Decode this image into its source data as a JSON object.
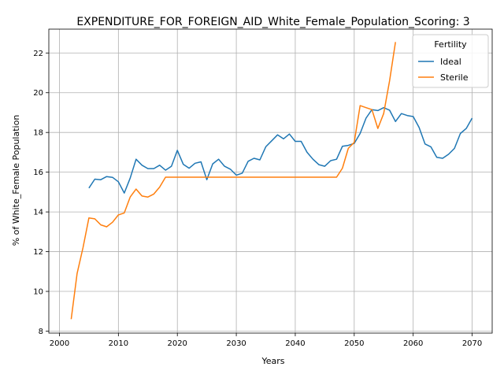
{
  "chart_data": {
    "type": "line",
    "title": "EXPENDITURE_FOR_FOREIGN_AID_White_Female_Population_Scoring: 3",
    "xlabel": "Years",
    "ylabel": "% of White_Female Population",
    "xlim": [
      1998.2,
      2073.4
    ],
    "ylim": [
      7.9,
      23.2
    ],
    "xticks": [
      2000,
      2010,
      2020,
      2030,
      2040,
      2050,
      2060,
      2070
    ],
    "yticks": [
      8,
      10,
      12,
      14,
      16,
      18,
      20,
      22
    ],
    "grid": true,
    "legend": {
      "title": "Fertility",
      "placement": "top-right"
    },
    "series": [
      {
        "name": "Ideal",
        "color": "#1f77b4",
        "x": [
          2005,
          2006,
          2007,
          2008,
          2009,
          2010,
          2011,
          2012,
          2013,
          2014,
          2015,
          2016,
          2017,
          2018,
          2019,
          2020,
          2021,
          2022,
          2023,
          2024,
          2025,
          2026,
          2027,
          2028,
          2029,
          2030,
          2031,
          2032,
          2033,
          2034,
          2035,
          2036,
          2037,
          2038,
          2039,
          2040,
          2041,
          2042,
          2043,
          2044,
          2045,
          2046,
          2047,
          2048,
          2049,
          2050,
          2051,
          2052,
          2053,
          2054,
          2055,
          2056,
          2057,
          2058,
          2059,
          2060,
          2061,
          2062,
          2063,
          2064,
          2065,
          2066,
          2067,
          2068,
          2069,
          2070
        ],
        "y": [
          15.2,
          15.65,
          15.62,
          15.78,
          15.74,
          15.52,
          14.95,
          15.7,
          16.65,
          16.35,
          16.18,
          16.18,
          16.35,
          16.1,
          16.3,
          17.1,
          16.4,
          16.2,
          16.45,
          16.52,
          15.62,
          16.42,
          16.65,
          16.3,
          16.15,
          15.85,
          15.95,
          16.55,
          16.7,
          16.62,
          17.28,
          17.58,
          17.88,
          17.68,
          17.92,
          17.55,
          17.55,
          17.0,
          16.65,
          16.38,
          16.3,
          16.58,
          16.65,
          17.3,
          17.35,
          17.45,
          17.95,
          18.72,
          19.15,
          19.1,
          19.25,
          19.12,
          18.55,
          18.95,
          18.85,
          18.8,
          18.25,
          17.42,
          17.28,
          16.75,
          16.7,
          16.9,
          17.2,
          17.95,
          18.2,
          18.72
        ]
      },
      {
        "name": "Sterile",
        "color": "#ff7f0e",
        "x": [
          2002,
          2003,
          2004,
          2005,
          2006,
          2007,
          2008,
          2009,
          2010,
          2011,
          2012,
          2013,
          2014,
          2015,
          2016,
          2017,
          2018,
          2019,
          2020,
          2021,
          2022,
          2023,
          2024,
          2025,
          2026,
          2027,
          2028,
          2029,
          2030,
          2031,
          2032,
          2033,
          2034,
          2035,
          2036,
          2037,
          2038,
          2039,
          2040,
          2041,
          2042,
          2043,
          2044,
          2045,
          2046,
          2047,
          2048,
          2049,
          2050,
          2051,
          2052,
          2053,
          2054,
          2055,
          2056,
          2057
        ],
        "y": [
          8.6,
          10.9,
          12.2,
          13.7,
          13.65,
          13.35,
          13.25,
          13.48,
          13.85,
          13.95,
          14.75,
          15.15,
          14.8,
          14.75,
          14.9,
          15.25,
          15.75,
          15.75,
          15.75,
          15.75,
          15.75,
          15.75,
          15.75,
          15.75,
          15.75,
          15.75,
          15.75,
          15.75,
          15.75,
          15.75,
          15.75,
          15.75,
          15.75,
          15.75,
          15.75,
          15.75,
          15.75,
          15.75,
          15.75,
          15.75,
          15.75,
          15.75,
          15.75,
          15.75,
          15.75,
          15.75,
          16.2,
          17.2,
          17.5,
          19.35,
          19.25,
          19.15,
          18.2,
          18.95,
          20.6,
          22.55
        ]
      }
    ]
  }
}
